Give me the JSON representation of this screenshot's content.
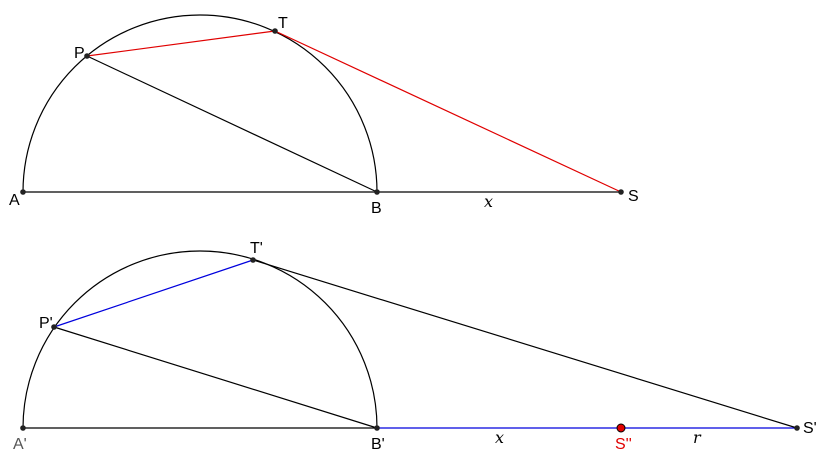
{
  "top_figure": {
    "labels": {
      "A": "A",
      "B": "B",
      "P": "P",
      "T": "T",
      "S": "S",
      "x": "x"
    },
    "colors": {
      "tangent_lines": "#e00000",
      "construction": "#000000"
    }
  },
  "bottom_figure": {
    "labels": {
      "A": "A'",
      "B": "B'",
      "P": "P'",
      "T": "T'",
      "S": "S'",
      "S2": "S''",
      "x": "x",
      "r": "r"
    },
    "colors": {
      "highlight_lines": "#0000dd",
      "special_point": "#e00000",
      "construction": "#000000"
    }
  }
}
